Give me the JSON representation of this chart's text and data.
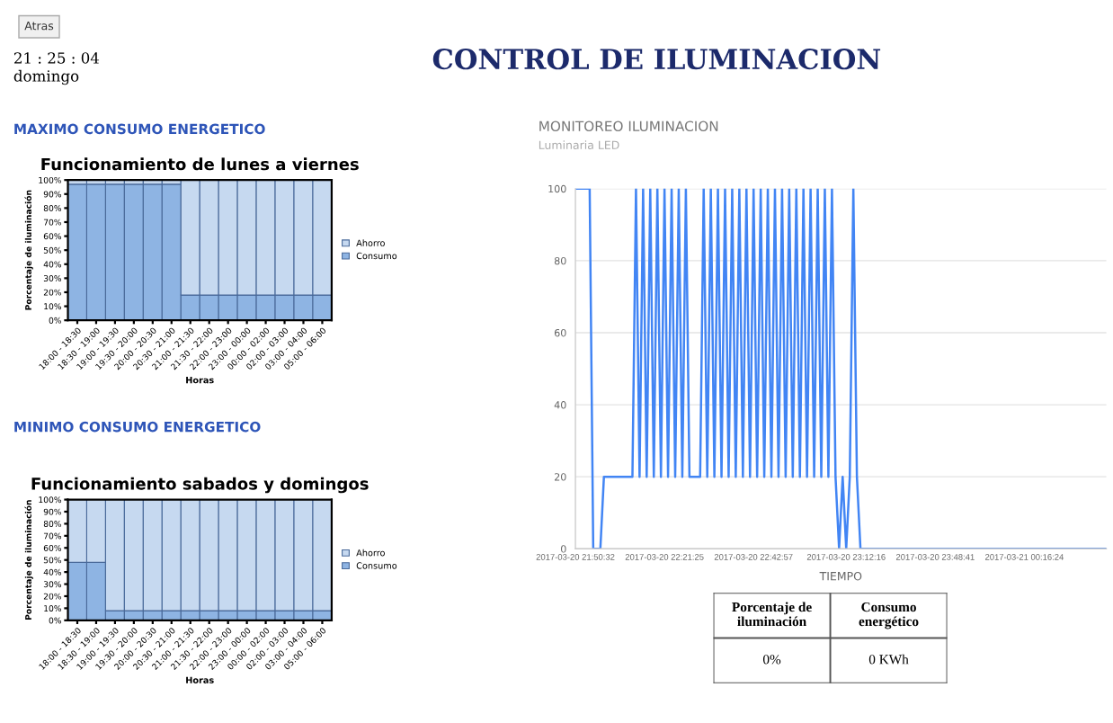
{
  "chart_data": [
    {
      "type": "other",
      "title": "CONTROL DE ILUMINACION",
      "annotations": [
        "Atras",
        "21 : 25 : 04",
        "domingo",
        "MAXIMO CONSUMO ENERGETICO",
        "MINIMO CONSUMO ENERGETICO"
      ]
    },
    {
      "type": "bar",
      "stacked": true,
      "title": "Funcionamiento de lunes a viernes",
      "xlabel": "Horas",
      "ylabel": "Porcentaje de iluminación",
      "categories": [
        "18:00 - 18:30",
        "18:30 - 19:00",
        "19:00 - 19:30",
        "19:30 - 20:00",
        "20:00 - 20:30",
        "20:30 - 21:00",
        "21:00 - 21:30",
        "21:30 - 22:00",
        "22:00 - 23:00",
        "23:00 - 00:00",
        "00:00 - 02:00",
        "02:00 - 03:00",
        "03:00 - 04:00",
        "05:00 - 06:00"
      ],
      "series": [
        {
          "name": "Consumo",
          "color": "#8eb4e3",
          "values": [
            97,
            97,
            97,
            97,
            97,
            97,
            18,
            18,
            18,
            18,
            18,
            18,
            18,
            18
          ]
        },
        {
          "name": "Ahorro",
          "color": "#c6d9f0",
          "values": [
            3,
            3,
            3,
            3,
            3,
            3,
            82,
            82,
            82,
            82,
            82,
            82,
            82,
            82
          ]
        }
      ],
      "ylim": [
        0,
        100
      ],
      "yticks": [
        {
          "value": 0,
          "label": "0%"
        },
        {
          "value": 10,
          "label": "10%"
        },
        {
          "value": 20,
          "label": "20%"
        },
        {
          "value": 30,
          "label": "30%"
        },
        {
          "value": 40,
          "label": "40%"
        },
        {
          "value": 50,
          "label": "50%"
        },
        {
          "value": 60,
          "label": "60%"
        },
        {
          "value": 70,
          "label": "70%"
        },
        {
          "value": 80,
          "label": "80%"
        },
        {
          "value": 90,
          "label": "90%"
        },
        {
          "value": 100,
          "label": "100%"
        }
      ],
      "legend": "right"
    },
    {
      "type": "bar",
      "stacked": true,
      "title": "Funcionamiento sabados y domingos",
      "xlabel": "Horas",
      "ylabel": "Porcentaje de iluminación",
      "categories": [
        "18:00 - 18:30",
        "18:30 - 19:00",
        "19:00 - 19:30",
        "19:30 - 20:00",
        "20:00 - 20:30",
        "20:30 - 21:00",
        "21:00 - 21:30",
        "21:30 - 22:00",
        "22:00 - 23:00",
        "23:00 - 00:00",
        "00:00 - 02:00",
        "02:00 - 03:00",
        "03:00 - 04:00",
        "05:00 - 06:00"
      ],
      "series": [
        {
          "name": "Consumo",
          "color": "#8eb4e3",
          "values": [
            48,
            48,
            8,
            8,
            8,
            8,
            8,
            8,
            8,
            8,
            8,
            8,
            8,
            8
          ]
        },
        {
          "name": "Ahorro",
          "color": "#c6d9f0",
          "values": [
            52,
            52,
            92,
            92,
            92,
            92,
            92,
            92,
            92,
            92,
            92,
            92,
            92,
            92
          ]
        }
      ],
      "ylim": [
        0,
        100
      ],
      "yticks": [
        {
          "value": 0,
          "label": "0%"
        },
        {
          "value": 10,
          "label": "10%"
        },
        {
          "value": 20,
          "label": "20%"
        },
        {
          "value": 30,
          "label": "30%"
        },
        {
          "value": 40,
          "label": "40%"
        },
        {
          "value": 50,
          "label": "50%"
        },
        {
          "value": 60,
          "label": "60%"
        },
        {
          "value": 70,
          "label": "70%"
        },
        {
          "value": 80,
          "label": "80%"
        },
        {
          "value": 90,
          "label": "90%"
        },
        {
          "value": 100,
          "label": "100%"
        }
      ],
      "legend": "right"
    },
    {
      "type": "line",
      "title": "MONITOREO ILUMINACION",
      "subtitle": "Luminaria LED",
      "xlabel": "TIEMPO",
      "categories": [
        "2017-03-20 21:50:32",
        null,
        null,
        null,
        null,
        null,
        null,
        null,
        null,
        null,
        null,
        null,
        null,
        null,
        null,
        null,
        null,
        null,
        null,
        null,
        null,
        null,
        null,
        null,
        null,
        "2017-03-20 22:21:25",
        null,
        null,
        null,
        null,
        null,
        null,
        null,
        null,
        null,
        null,
        null,
        null,
        null,
        null,
        null,
        null,
        null,
        null,
        null,
        null,
        null,
        null,
        null,
        null,
        "2017-03-20 22:42:57",
        null,
        null,
        null,
        null,
        null,
        null,
        null,
        null,
        null,
        null,
        null,
        null,
        null,
        null,
        null,
        null,
        null,
        null,
        null,
        null,
        null,
        null,
        null,
        null,
        null,
        "2017-03-20 23:12:16",
        null,
        null,
        null,
        null,
        null,
        null,
        null,
        null,
        null,
        null,
        null,
        null,
        null,
        null,
        null,
        null,
        null,
        null,
        null,
        null,
        null,
        null,
        null,
        null,
        "2017-03-20 23:48:41",
        null,
        null,
        null,
        null,
        null,
        null,
        null,
        null,
        null,
        null,
        null,
        null,
        null,
        null,
        null,
        null,
        null,
        null,
        null,
        null,
        null,
        null,
        null,
        null,
        "2017-03-21 00:16:24",
        null,
        null,
        null,
        null,
        null,
        null,
        null,
        null,
        null,
        null,
        null,
        null,
        null,
        null,
        null,
        null,
        null,
        null,
        null,
        null,
        null,
        null,
        null
      ],
      "series": [
        {
          "color": "#4285f4",
          "values": [
            100,
            100,
            100,
            100,
            100,
            0,
            0,
            0,
            20,
            20,
            20,
            20,
            20,
            20,
            20,
            20,
            20,
            100,
            20,
            100,
            20,
            100,
            20,
            100,
            20,
            100,
            20,
            100,
            20,
            100,
            20,
            100,
            20,
            20,
            20,
            20,
            100,
            20,
            100,
            20,
            100,
            20,
            100,
            20,
            100,
            20,
            100,
            20,
            100,
            20,
            100,
            20,
            100,
            20,
            100,
            20,
            100,
            20,
            100,
            20,
            100,
            20,
            100,
            20,
            100,
            20,
            100,
            20,
            100,
            20,
            100,
            20,
            100,
            20,
            0,
            20,
            0,
            20,
            100,
            20,
            0,
            0,
            0,
            0,
            0,
            0,
            0,
            0,
            0,
            0,
            0,
            0,
            0,
            0,
            0,
            0,
            0,
            0,
            0,
            0,
            0,
            0,
            0,
            0,
            0,
            0,
            0,
            0,
            0,
            0,
            0,
            0,
            0,
            0,
            0,
            0,
            0,
            0,
            0,
            0,
            0,
            0,
            0,
            0,
            0,
            0,
            0,
            0,
            0,
            0,
            0,
            0,
            0,
            0,
            0,
            0,
            0,
            0,
            0,
            0,
            0,
            0,
            0,
            0,
            0,
            0,
            0,
            0,
            0,
            0
          ]
        }
      ],
      "ylim": [
        0,
        100
      ],
      "yticks": [
        0,
        20,
        40,
        60,
        80,
        100
      ],
      "grid": "y"
    },
    {
      "type": "other",
      "categories": [
        "Porcentaje de\niluminación",
        "Consumo\nenergético"
      ],
      "cell_labels": [
        [
          "0%",
          "0 KWh"
        ]
      ]
    }
  ]
}
